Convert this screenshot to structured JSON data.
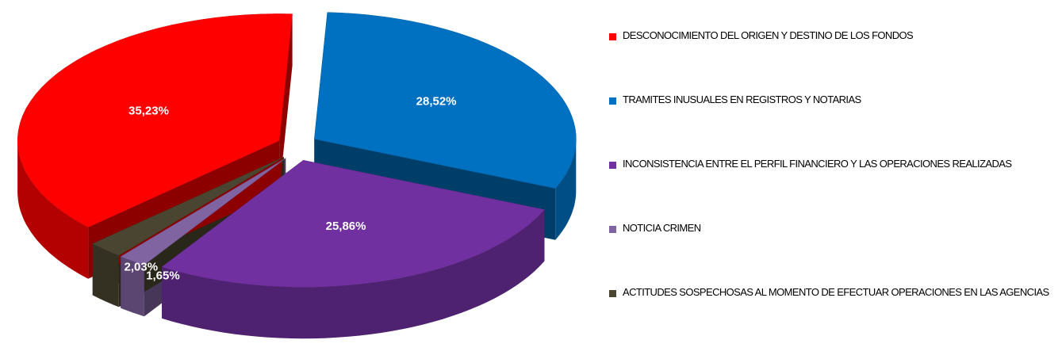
{
  "chart_data": {
    "type": "pie",
    "categories": [
      "DESCONOCIMIENTO DEL ORIGEN Y DESTINO DE LOS FONDOS",
      "TRAMITES INUSUALES EN REGISTROS Y NOTARIAS",
      "INCONSISTENCIA ENTRE EL PERFIL FINANCIERO Y LAS OPERACIONES REALIZADAS",
      "NOTICIA CRIMEN",
      "ACTITUDES SOSPECHOSAS AL MOMENTO DE EFECTUAR OPERACIONES EN LAS AGENCIAS"
    ],
    "values": [
      35.23,
      28.52,
      25.86,
      1.65,
      2.03
    ],
    "value_labels": [
      "35,23%",
      "28,52%",
      "25,86%",
      "1,65%",
      "2,03%"
    ],
    "colors": [
      "#ff0000",
      "#0070c0",
      "#7030a0",
      "#8064a2",
      "#4a4530"
    ],
    "legend": "right"
  }
}
